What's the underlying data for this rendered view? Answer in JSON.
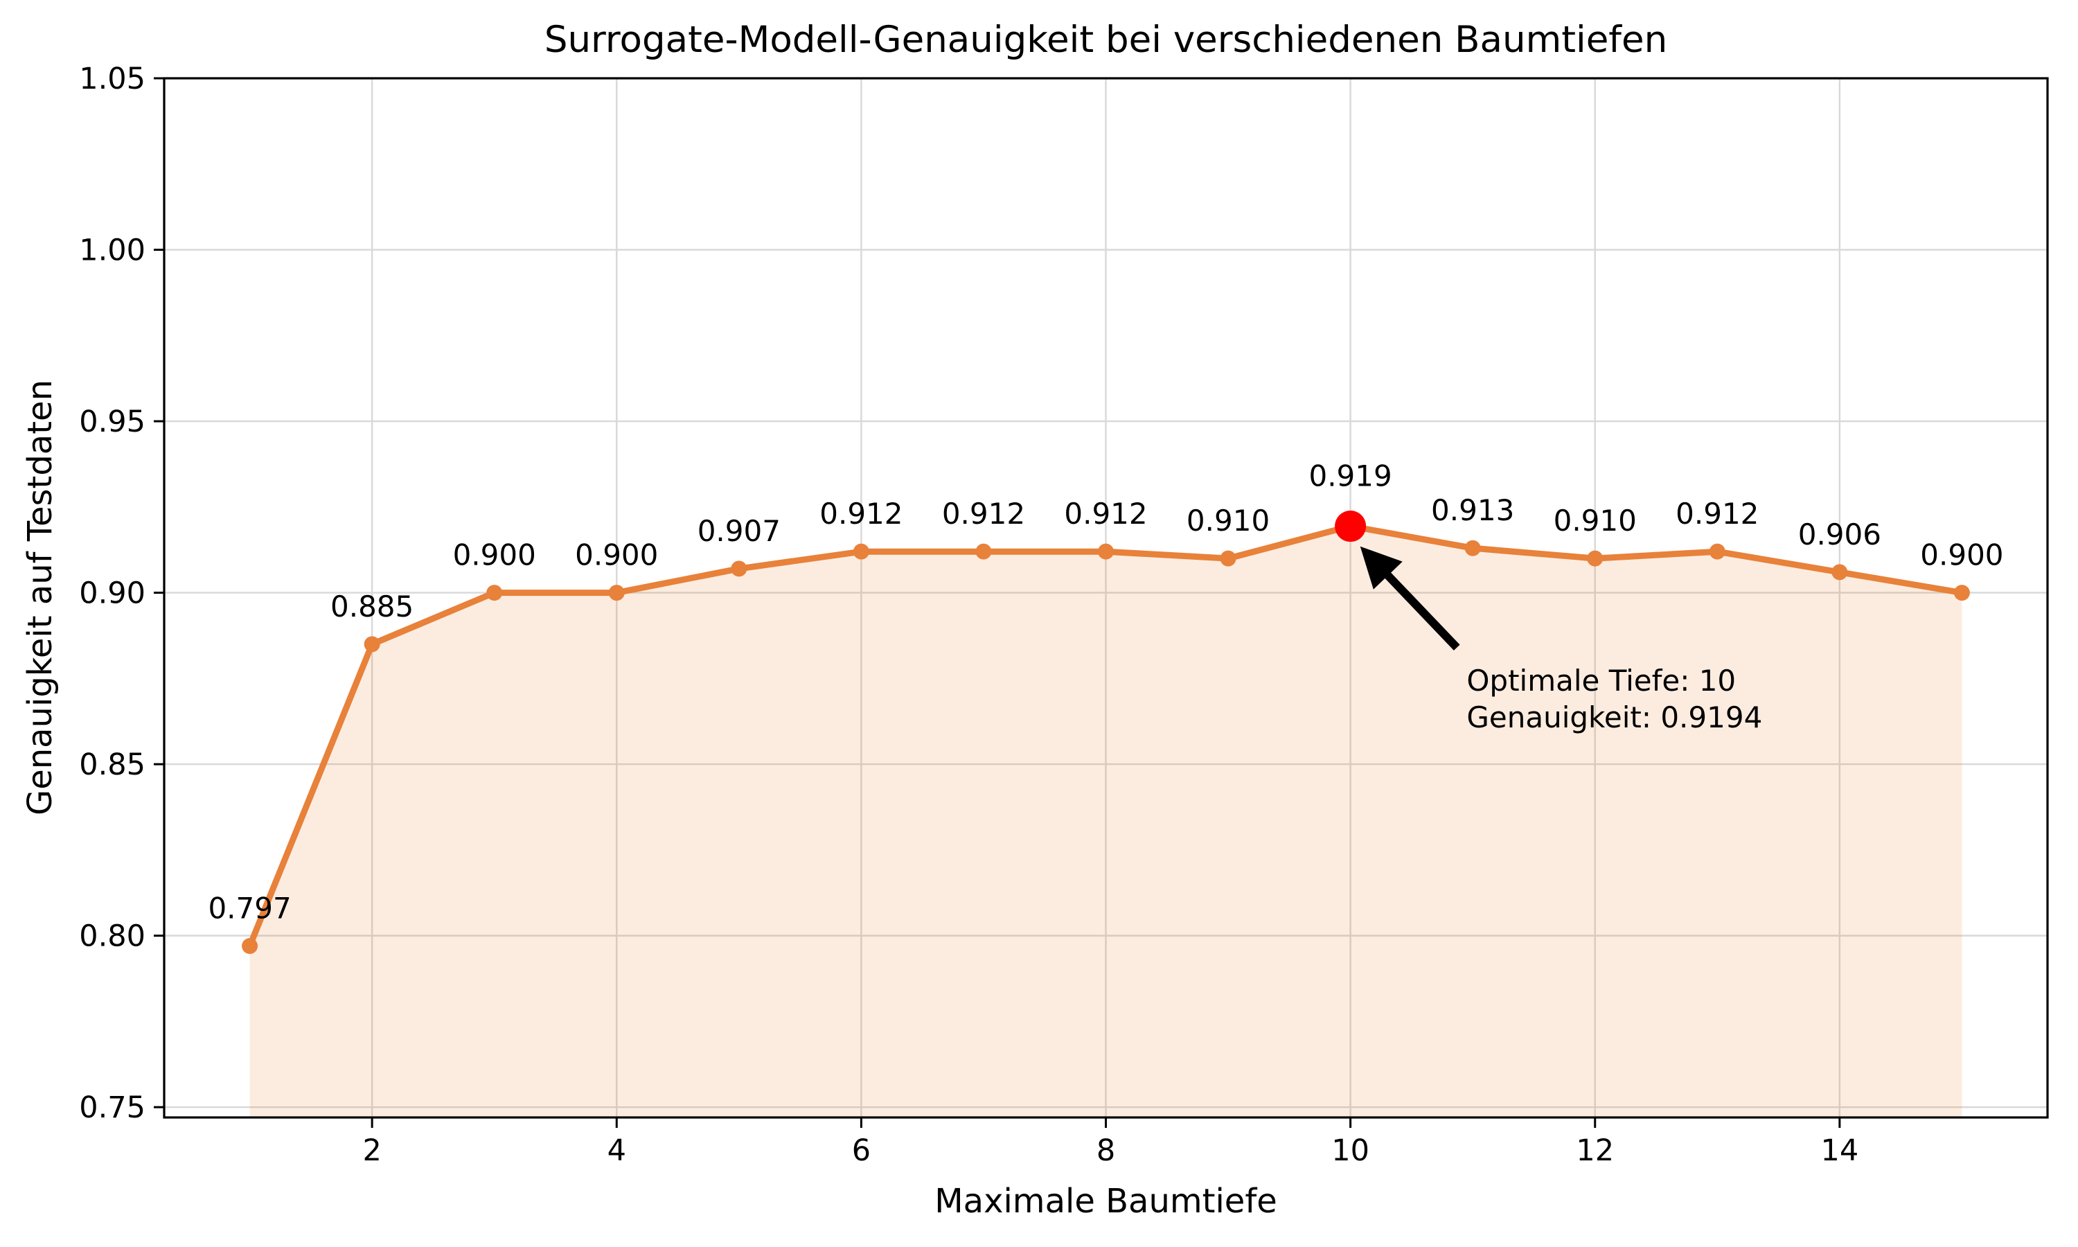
{
  "chart_data": {
    "type": "line",
    "title": "Surrogate-Modell-Genauigkeit bei verschiedenen Baumtiefen",
    "xlabel": "Maximale Baumtiefe",
    "ylabel": "Genauigkeit auf Testdaten",
    "x": [
      1,
      2,
      3,
      4,
      5,
      6,
      7,
      8,
      9,
      10,
      11,
      12,
      13,
      14,
      15
    ],
    "y": [
      0.797,
      0.885,
      0.9,
      0.9,
      0.907,
      0.912,
      0.912,
      0.912,
      0.91,
      0.9194,
      0.913,
      0.91,
      0.912,
      0.906,
      0.9
    ],
    "point_labels": [
      "0.797",
      "0.885",
      "0.900",
      "0.900",
      "0.907",
      "0.912",
      "0.912",
      "0.912",
      "0.910",
      "0.919",
      "0.913",
      "0.910",
      "0.912",
      "0.906",
      "0.900"
    ],
    "x_ticks": [
      2,
      4,
      6,
      8,
      10,
      12,
      14
    ],
    "x_tick_labels": [
      "2",
      "4",
      "6",
      "8",
      "10",
      "12",
      "14"
    ],
    "y_ticks": [
      0.75,
      0.8,
      0.85,
      0.9,
      0.95,
      1.0,
      1.05
    ],
    "y_tick_labels": [
      "0.75",
      "0.80",
      "0.85",
      "0.90",
      "0.95",
      "1.00",
      "1.05"
    ],
    "xlim": [
      0.3,
      15.7
    ],
    "ylim": [
      0.747,
      1.05
    ],
    "grid": true,
    "legend": false,
    "colors": {
      "line": "#e8813a",
      "marker": "#e8813a",
      "fill": "rgba(232, 129, 46, 0.15)",
      "highlight_point": "#ff0000",
      "grid": "#d8d8d8",
      "axis": "#000000",
      "text": "#000000"
    },
    "highlight": {
      "index": 9,
      "depth": 10,
      "accuracy": 0.9194
    },
    "annotation": {
      "line1": "Optimale Tiefe: 10",
      "line2": "Genauigkeit: 0.9194",
      "text_xy": [
        10.95,
        0.8795
      ],
      "arrow_tail_xy": [
        10.87,
        0.884
      ],
      "arrow_tip_xy": [
        10.08,
        0.9135
      ]
    }
  }
}
